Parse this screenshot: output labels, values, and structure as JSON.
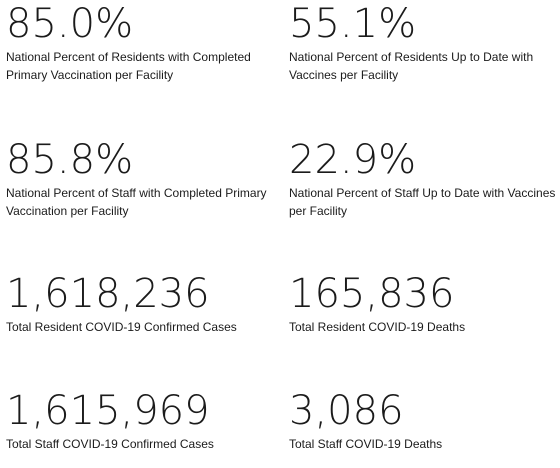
{
  "stats": [
    {
      "value": "85.0%",
      "label": "National Percent of Residents with Completed Primary Vaccination per Facility"
    },
    {
      "value": "55.1%",
      "label": "National Percent of Residents Up to Date with Vaccines per Facility"
    },
    {
      "value": "85.8%",
      "label": "National Percent of Staff with Completed Primary Vaccination per Facility"
    },
    {
      "value": "22.9%",
      "label": "National Percent of Staff Up to Date with Vaccines per Facility"
    },
    {
      "value": "1,618,236",
      "label": "Total Resident COVID-19 Confirmed Cases"
    },
    {
      "value": "165,836",
      "label": "Total Resident COVID-19 Deaths"
    },
    {
      "value": "1,615,969",
      "label": "Total Staff COVID-19 Confirmed Cases"
    },
    {
      "value": "3,086",
      "label": "Total Staff COVID-19 Deaths"
    }
  ]
}
